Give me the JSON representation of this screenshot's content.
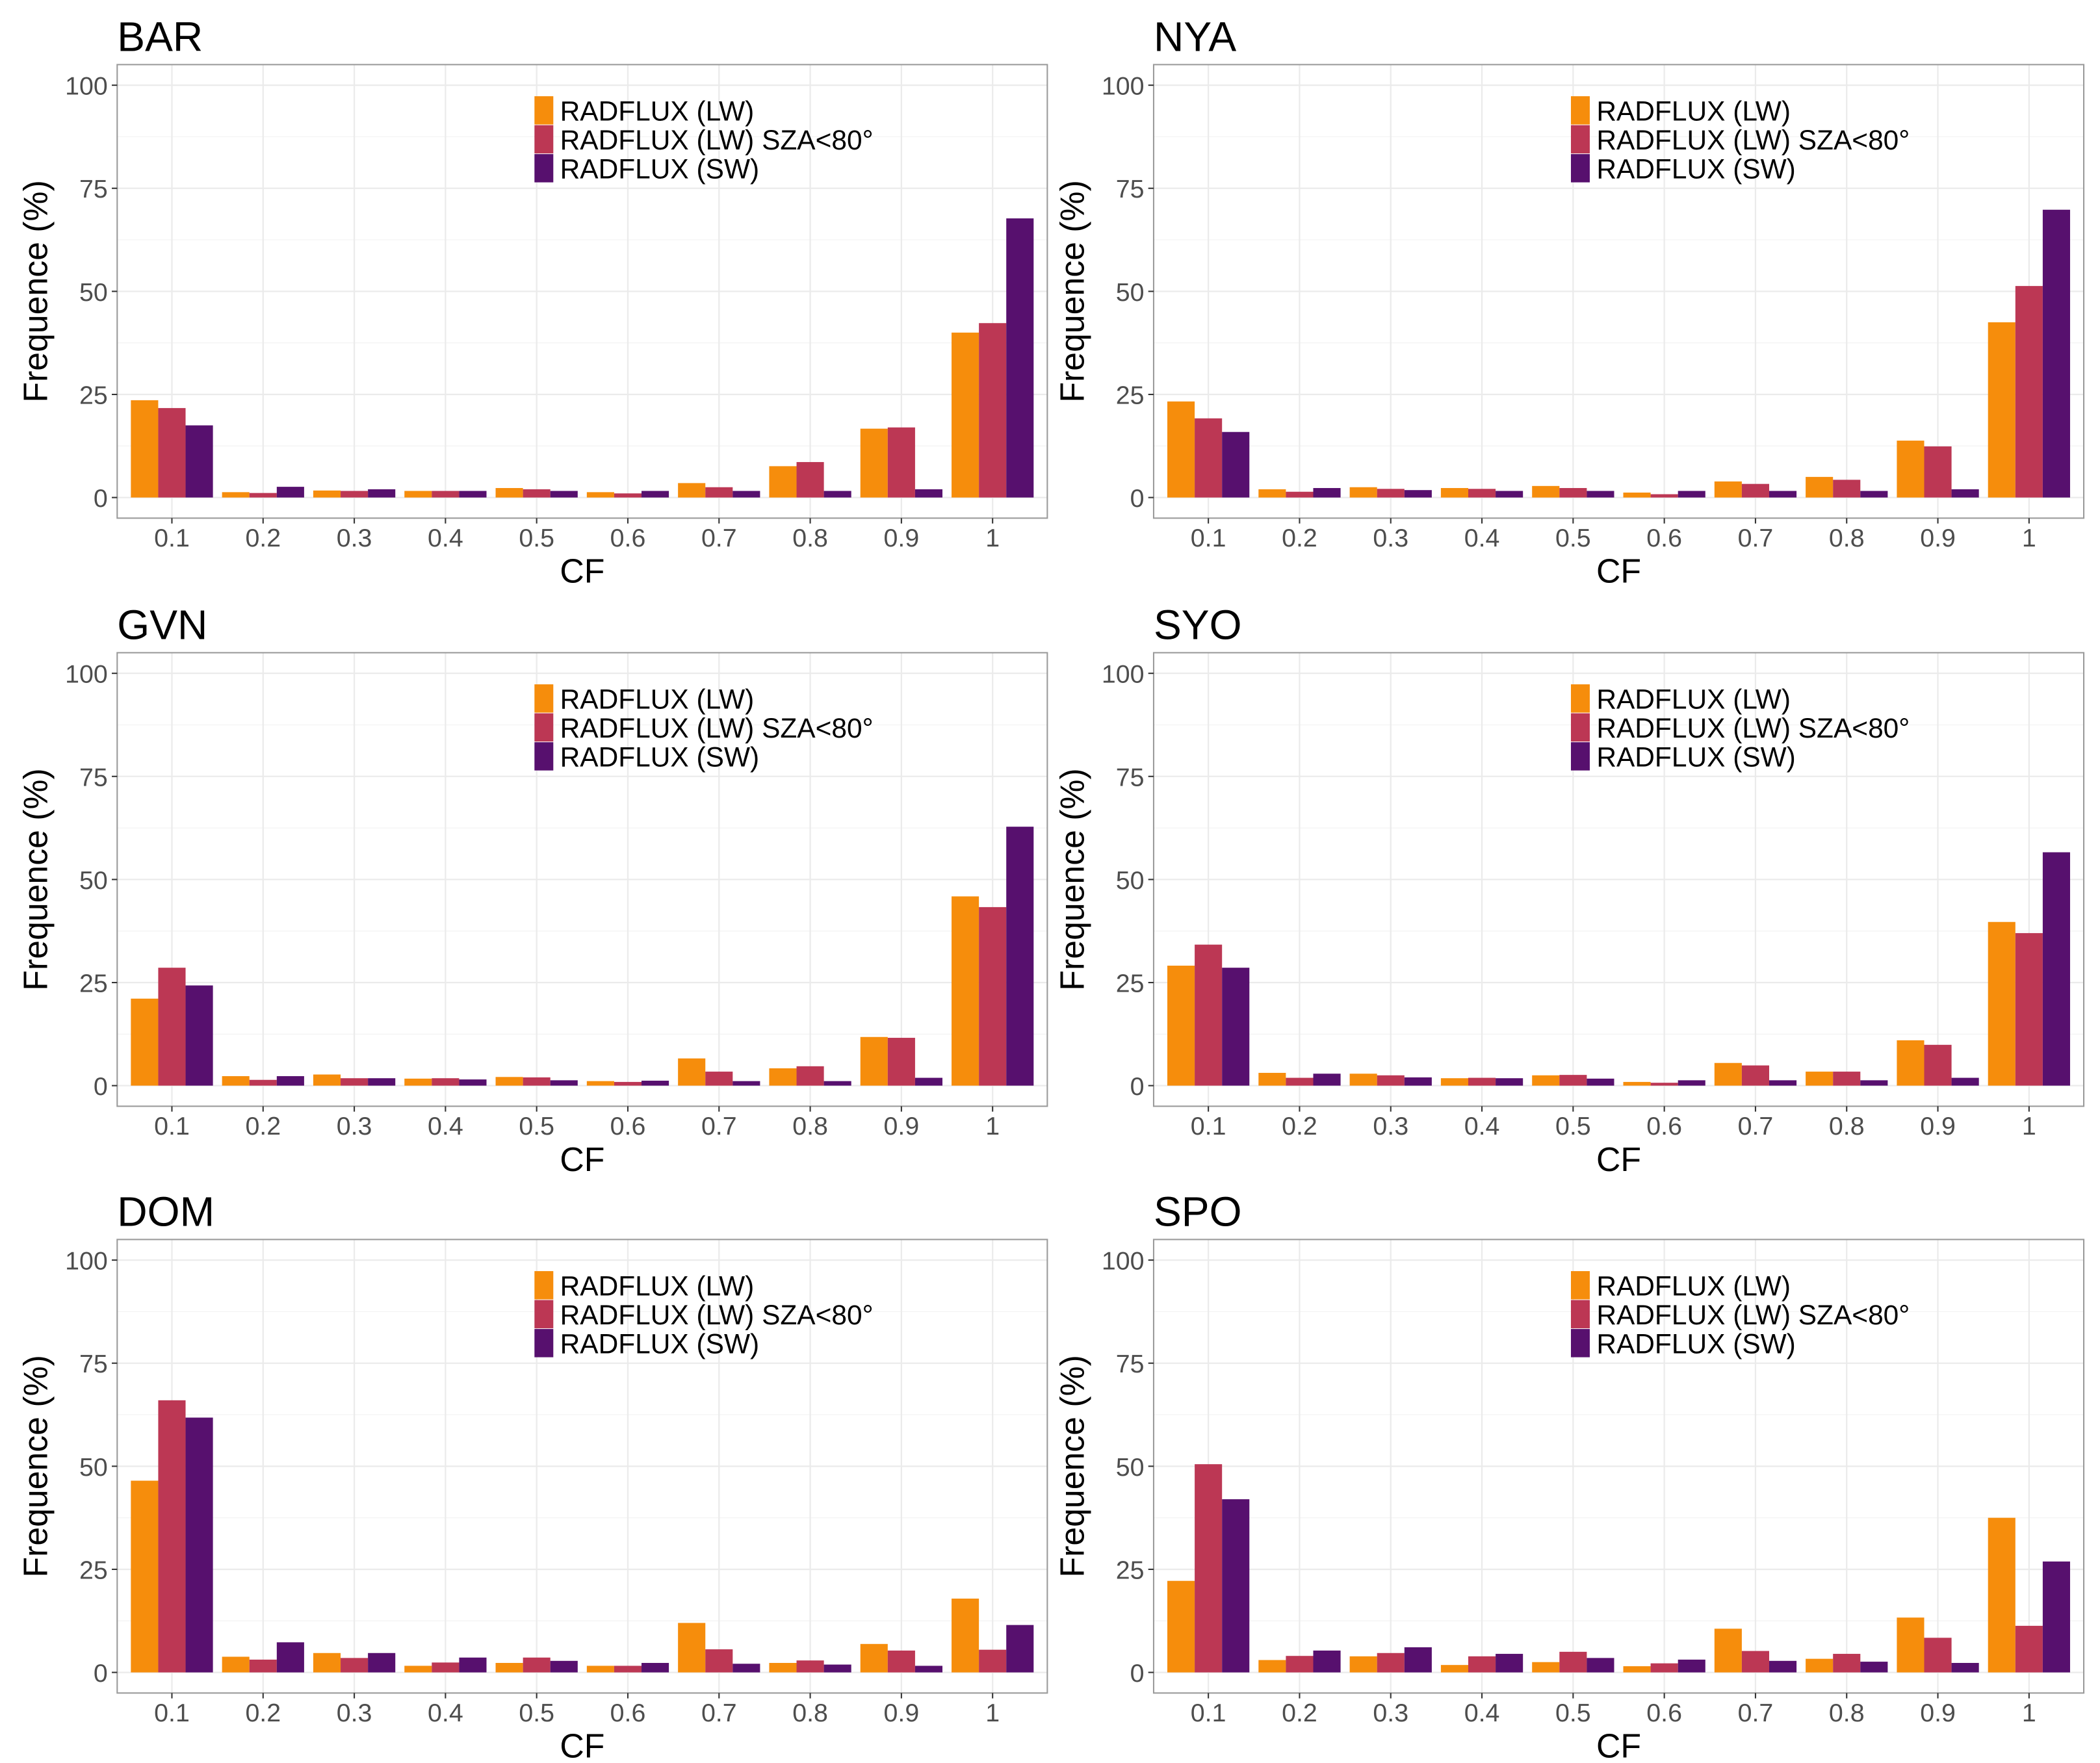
{
  "chart_data": [
    {
      "type": "bar",
      "title": "BAR",
      "xlabel": "CF",
      "ylabel": "Frequence (%)",
      "ylim": [
        -5,
        105
      ],
      "yticks": [
        0,
        25,
        50,
        75,
        100
      ],
      "grid": true,
      "legend": "top-right",
      "categories": [
        "0.1",
        "0.2",
        "0.3",
        "0.4",
        "0.5",
        "0.6",
        "0.7",
        "0.8",
        "0.9",
        "1"
      ],
      "series": [
        {
          "name": "RADFLUX (LW)",
          "values": [
            23.6,
            1.3,
            1.7,
            1.6,
            2.3,
            1.3,
            3.5,
            7.6,
            16.7,
            40.0
          ]
        },
        {
          "name": "RADFLUX (LW) SZA<80°",
          "values": [
            21.7,
            1.1,
            1.6,
            1.6,
            2.0,
            1.0,
            2.5,
            8.6,
            17.0,
            42.3
          ]
        },
        {
          "name": "RADFLUX (SW)",
          "values": [
            17.5,
            2.6,
            2.0,
            1.6,
            1.6,
            1.6,
            1.6,
            1.6,
            2.0,
            67.7
          ]
        }
      ]
    },
    {
      "type": "bar",
      "title": "NYA",
      "xlabel": "CF",
      "ylabel": "Frequence (%)",
      "ylim": [
        -5,
        105
      ],
      "yticks": [
        0,
        25,
        50,
        75,
        100
      ],
      "grid": true,
      "legend": "top-right",
      "categories": [
        "0.1",
        "0.2",
        "0.3",
        "0.4",
        "0.5",
        "0.6",
        "0.7",
        "0.8",
        "0.9",
        "1"
      ],
      "series": [
        {
          "name": "RADFLUX (LW)",
          "values": [
            23.3,
            2.0,
            2.5,
            2.3,
            2.8,
            1.2,
            3.9,
            5.0,
            13.8,
            42.5
          ]
        },
        {
          "name": "RADFLUX (LW) SZA<80°",
          "values": [
            19.2,
            1.4,
            2.1,
            2.1,
            2.3,
            0.8,
            3.3,
            4.3,
            12.4,
            51.3
          ]
        },
        {
          "name": "RADFLUX (SW)",
          "values": [
            15.9,
            2.3,
            1.8,
            1.6,
            1.6,
            1.6,
            1.6,
            1.6,
            2.0,
            69.8
          ]
        }
      ]
    },
    {
      "type": "bar",
      "title": "GVN",
      "xlabel": "CF",
      "ylabel": "Frequence (%)",
      "ylim": [
        -5,
        105
      ],
      "yticks": [
        0,
        25,
        50,
        75,
        100
      ],
      "grid": true,
      "legend": "top-right",
      "categories": [
        "0.1",
        "0.2",
        "0.3",
        "0.4",
        "0.5",
        "0.6",
        "0.7",
        "0.8",
        "0.9",
        "1"
      ],
      "series": [
        {
          "name": "RADFLUX (LW)",
          "values": [
            21.1,
            2.3,
            2.7,
            1.7,
            2.1,
            1.1,
            6.6,
            4.2,
            11.8,
            45.9
          ]
        },
        {
          "name": "RADFLUX (LW) SZA<80°",
          "values": [
            28.6,
            1.4,
            1.8,
            1.8,
            2.0,
            0.9,
            3.4,
            4.7,
            11.6,
            43.3
          ]
        },
        {
          "name": "RADFLUX (SW)",
          "values": [
            24.3,
            2.3,
            1.8,
            1.5,
            1.3,
            1.2,
            1.1,
            1.1,
            1.9,
            62.8
          ]
        }
      ]
    },
    {
      "type": "bar",
      "title": "SYO",
      "xlabel": "CF",
      "ylabel": "Frequence (%)",
      "ylim": [
        -5,
        105
      ],
      "yticks": [
        0,
        25,
        50,
        75,
        100
      ],
      "grid": true,
      "legend": "top-right",
      "categories": [
        "0.1",
        "0.2",
        "0.3",
        "0.4",
        "0.5",
        "0.6",
        "0.7",
        "0.8",
        "0.9",
        "1"
      ],
      "series": [
        {
          "name": "RADFLUX (LW)",
          "values": [
            29.1,
            3.1,
            2.9,
            1.8,
            2.5,
            0.9,
            5.5,
            3.4,
            11.0,
            39.7
          ]
        },
        {
          "name": "RADFLUX (LW) SZA<80°",
          "values": [
            34.2,
            1.9,
            2.5,
            1.9,
            2.6,
            0.7,
            4.9,
            3.4,
            9.9,
            37.0
          ]
        },
        {
          "name": "RADFLUX (SW)",
          "values": [
            28.6,
            2.9,
            2.0,
            1.8,
            1.7,
            1.3,
            1.3,
            1.3,
            1.9,
            56.6
          ]
        }
      ]
    },
    {
      "type": "bar",
      "title": "DOM",
      "xlabel": "CF",
      "ylabel": "Frequence (%)",
      "ylim": [
        -5,
        105
      ],
      "yticks": [
        0,
        25,
        50,
        75,
        100
      ],
      "grid": true,
      "legend": "top-right",
      "categories": [
        "0.1",
        "0.2",
        "0.3",
        "0.4",
        "0.5",
        "0.6",
        "0.7",
        "0.8",
        "0.9",
        "1"
      ],
      "series": [
        {
          "name": "RADFLUX (LW)",
          "values": [
            46.5,
            3.8,
            4.7,
            1.6,
            2.3,
            1.6,
            12.0,
            2.3,
            6.9,
            17.9
          ]
        },
        {
          "name": "RADFLUX (LW) SZA<80°",
          "values": [
            66.0,
            3.1,
            3.5,
            2.4,
            3.6,
            1.6,
            5.6,
            2.9,
            5.3,
            5.5
          ]
        },
        {
          "name": "RADFLUX (SW)",
          "values": [
            61.8,
            7.3,
            4.7,
            3.6,
            2.8,
            2.3,
            2.1,
            1.9,
            1.6,
            11.5
          ]
        }
      ]
    },
    {
      "type": "bar",
      "title": "SPO",
      "xlabel": "CF",
      "ylabel": "Frequence (%)",
      "ylim": [
        -5,
        105
      ],
      "yticks": [
        0,
        25,
        50,
        75,
        100
      ],
      "grid": true,
      "legend": "top-right",
      "categories": [
        "0.1",
        "0.2",
        "0.3",
        "0.4",
        "0.5",
        "0.6",
        "0.7",
        "0.8",
        "0.9",
        "1"
      ],
      "series": [
        {
          "name": "RADFLUX (LW)",
          "values": [
            22.2,
            3.0,
            3.9,
            1.8,
            2.5,
            1.5,
            10.6,
            3.3,
            13.3,
            37.5
          ]
        },
        {
          "name": "RADFLUX (LW) SZA<80°",
          "values": [
            50.5,
            4.0,
            4.7,
            3.9,
            5.0,
            2.2,
            5.2,
            4.5,
            8.4,
            11.3
          ]
        },
        {
          "name": "RADFLUX (SW)",
          "values": [
            42.0,
            5.3,
            6.1,
            4.5,
            3.5,
            3.1,
            2.8,
            2.6,
            2.3,
            26.9
          ]
        }
      ]
    }
  ],
  "colors": [
    "#f68d0c",
    "#bc3754",
    "#57106e"
  ]
}
